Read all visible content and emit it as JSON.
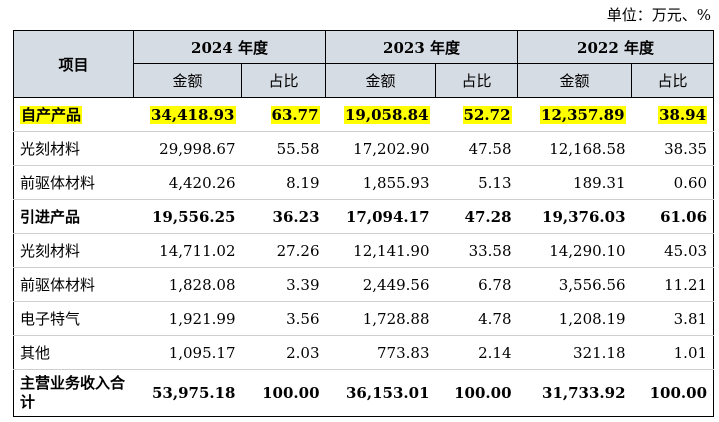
{
  "unit_note": "单位：万元、%",
  "header": {
    "item": "项目",
    "years": [
      "2024 年度",
      "2023 年度",
      "2022 年度"
    ],
    "amount": "金额",
    "ratio": "占比"
  },
  "highlight_color": "#ffff00",
  "header_bg": "#d6dce4",
  "rows": [
    {
      "label": "自产产品",
      "cells": [
        "34,418.93",
        "63.77",
        "19,058.84",
        "52.72",
        "12,357.89",
        "38.94"
      ]
    },
    {
      "label": "光刻材料",
      "cells": [
        "29,998.67",
        "55.58",
        "17,202.90",
        "47.58",
        "12,168.58",
        "38.35"
      ]
    },
    {
      "label": "前驱体材料",
      "cells": [
        "4,420.26",
        "8.19",
        "1,855.93",
        "5.13",
        "189.31",
        "0.60"
      ]
    },
    {
      "label": "引进产品",
      "cells": [
        "19,556.25",
        "36.23",
        "17,094.17",
        "47.28",
        "19,376.03",
        "61.06"
      ]
    },
    {
      "label": "光刻材料",
      "cells": [
        "14,711.02",
        "27.26",
        "12,141.90",
        "33.58",
        "14,290.10",
        "45.03"
      ]
    },
    {
      "label": "前驱体材料",
      "cells": [
        "1,828.08",
        "3.39",
        "2,449.56",
        "6.78",
        "3,556.56",
        "11.21"
      ]
    },
    {
      "label": "电子特气",
      "cells": [
        "1,921.99",
        "3.56",
        "1,728.88",
        "4.78",
        "1,208.19",
        "3.81"
      ]
    },
    {
      "label": "其他",
      "cells": [
        "1,095.17",
        "2.03",
        "773.83",
        "2.14",
        "321.18",
        "1.01"
      ]
    },
    {
      "label": "主营业务收入合计",
      "cells": [
        "53,975.18",
        "100.00",
        "36,153.01",
        "100.00",
        "31,733.92",
        "100.00"
      ]
    }
  ]
}
